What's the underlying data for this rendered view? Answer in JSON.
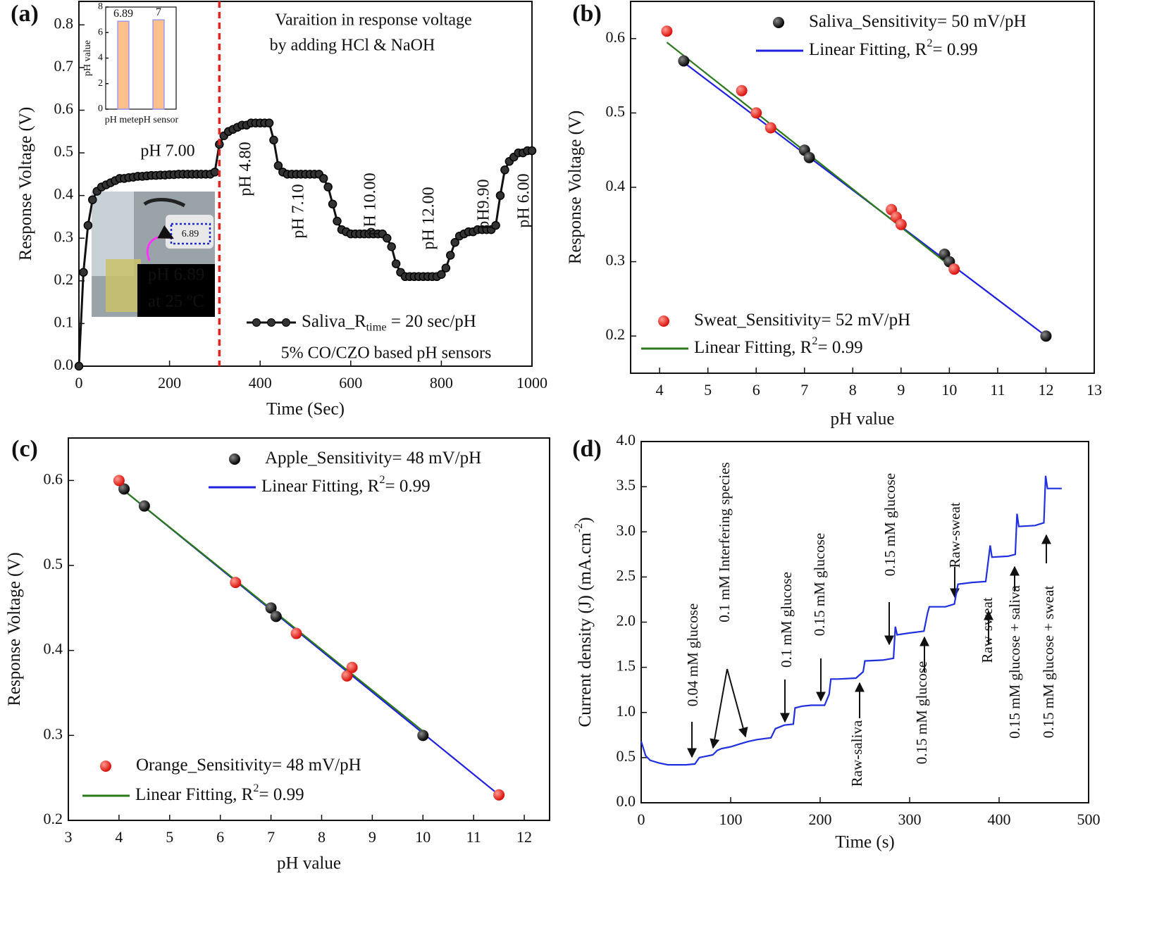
{
  "chart_data": [
    {
      "type": "line",
      "panel_label": "(a)",
      "xlabel": "Time (Sec)",
      "ylabel": "Response Voltage (V)",
      "xlim": [
        0,
        1000
      ],
      "ylim": [
        0,
        0.855
      ],
      "xticks": [
        0,
        200,
        400,
        600,
        800,
        1000
      ],
      "yticks": [
        {
          "value": 0,
          "label": "0.0"
        },
        0.1,
        0.2,
        0.3,
        0.4,
        0.5,
        0.6,
        0.7,
        0.8
      ],
      "vline": 310,
      "vline_color": "#e8231f",
      "annotations": [
        "Varaition in response voltage",
        "by adding HCl & NaOH",
        "5% CO/CZO based pH sensors"
      ],
      "ph_labels": [
        "pH 7.00",
        "pH 4.80",
        "pH 7.10",
        "pH 10.00",
        "pH 12.00",
        "pH9.90",
        "pH 6.00"
      ],
      "photo_labels": [
        "pH 6.89",
        "at 25 ºC"
      ],
      "photo_display": "6.89",
      "series": [
        {
          "name": "Saliva_R",
          "name_subscript": "time",
          "name_suffix": " = 20 sec/pH",
          "color": "#111111",
          "marker": "circle",
          "x": [
            0,
            10,
            20,
            30,
            40,
            50,
            60,
            70,
            80,
            90,
            100,
            110,
            120,
            130,
            140,
            150,
            160,
            170,
            180,
            190,
            200,
            210,
            220,
            230,
            240,
            250,
            260,
            270,
            280,
            290,
            300,
            310,
            320,
            330,
            340,
            350,
            360,
            370,
            380,
            390,
            400,
            410,
            420,
            430,
            440,
            450,
            460,
            470,
            480,
            490,
            500,
            510,
            520,
            530,
            540,
            550,
            560,
            570,
            580,
            590,
            600,
            610,
            620,
            630,
            640,
            650,
            660,
            670,
            680,
            690,
            700,
            710,
            720,
            730,
            740,
            750,
            760,
            770,
            780,
            790,
            800,
            810,
            820,
            830,
            840,
            850,
            860,
            870,
            880,
            890,
            900,
            910,
            920,
            930,
            940,
            950,
            960,
            970,
            980,
            990,
            1000
          ],
          "values": [
            0.0,
            0.22,
            0.33,
            0.39,
            0.41,
            0.42,
            0.425,
            0.43,
            0.435,
            0.44,
            0.44,
            0.442,
            0.443,
            0.445,
            0.445,
            0.446,
            0.447,
            0.447,
            0.448,
            0.448,
            0.449,
            0.449,
            0.45,
            0.45,
            0.45,
            0.45,
            0.45,
            0.45,
            0.45,
            0.45,
            0.455,
            0.52,
            0.54,
            0.55,
            0.555,
            0.56,
            0.565,
            0.565,
            0.57,
            0.57,
            0.57,
            0.57,
            0.57,
            0.53,
            0.47,
            0.455,
            0.45,
            0.45,
            0.45,
            0.45,
            0.45,
            0.45,
            0.45,
            0.45,
            0.44,
            0.42,
            0.38,
            0.34,
            0.32,
            0.315,
            0.31,
            0.31,
            0.31,
            0.31,
            0.31,
            0.31,
            0.31,
            0.31,
            0.3,
            0.28,
            0.24,
            0.22,
            0.21,
            0.21,
            0.21,
            0.21,
            0.21,
            0.21,
            0.21,
            0.21,
            0.215,
            0.23,
            0.26,
            0.29,
            0.305,
            0.31,
            0.315,
            0.315,
            0.32,
            0.32,
            0.32,
            0.32,
            0.33,
            0.4,
            0.46,
            0.48,
            0.49,
            0.5,
            0.5,
            0.505,
            0.505
          ]
        }
      ]
    },
    {
      "type": "scatter",
      "panel_label": "(b)",
      "xlabel": "pH value",
      "ylabel": "Response Voltage (V)",
      "xlim": [
        3.4,
        13
      ],
      "ylim": [
        0.15,
        0.65
      ],
      "xticks": [
        4,
        5,
        6,
        7,
        8,
        9,
        10,
        11,
        12,
        13
      ],
      "yticks": [
        0.2,
        0.3,
        0.4,
        0.5,
        0.6
      ],
      "series": [
        {
          "name": "Saliva_Sensitivity= 50 mV/pH",
          "color": "#111111",
          "x": [
            4.5,
            7,
            7.1,
            9.9,
            10,
            12
          ],
          "values": [
            0.57,
            0.45,
            0.44,
            0.31,
            0.3,
            0.2
          ]
        },
        {
          "type": "line",
          "name": "Linear Fitting, R",
          "name_superscript": "2",
          "name_suffix": "= 0.99",
          "color": "#1f1fe0",
          "x": [
            4.5,
            12
          ],
          "values": [
            0.568,
            0.2
          ]
        },
        {
          "name": "Sweat_Sensitivity= 52 mV/pH",
          "color": "#e8231f",
          "x": [
            4.15,
            5.7,
            6,
            6.3,
            8.8,
            8.9,
            9,
            10.1
          ],
          "values": [
            0.61,
            0.53,
            0.5,
            0.48,
            0.37,
            0.36,
            0.35,
            0.29
          ]
        },
        {
          "type": "line",
          "name": "Linear Fitting, R",
          "name_superscript": "2",
          "name_suffix": "= 0.99",
          "color": "#2a7a1a",
          "x": [
            4.15,
            10.1
          ],
          "values": [
            0.595,
            0.29
          ]
        }
      ]
    },
    {
      "type": "scatter",
      "panel_label": "(c)",
      "xlabel": "pH value",
      "ylabel": "Response Voltage (V)",
      "xlim": [
        3,
        12.5
      ],
      "ylim": [
        0.2,
        0.65
      ],
      "xticks": [
        3,
        4,
        5,
        6,
        7,
        8,
        9,
        10,
        11,
        12
      ],
      "yticks": [
        0.2,
        0.3,
        0.4,
        0.5,
        0.6
      ],
      "series": [
        {
          "name": "Apple_Sensitivity= 48 mV/pH",
          "color": "#111111",
          "x": [
            4.1,
            4.5,
            7,
            7.1,
            10
          ],
          "values": [
            0.59,
            0.57,
            0.45,
            0.44,
            0.3
          ]
        },
        {
          "type": "line",
          "name": "Linear Fitting, R",
          "name_superscript": "2",
          "name_suffix": "= 0.99",
          "color": "#1f1fe0",
          "x": [
            4,
            11.5
          ],
          "values": [
            0.593,
            0.23
          ]
        },
        {
          "name": "Orange_Sensitivity= 48 mV/pH",
          "color": "#e8231f",
          "x": [
            4,
            6.3,
            7.5,
            8.5,
            8.6,
            11.5
          ],
          "values": [
            0.6,
            0.48,
            0.42,
            0.37,
            0.38,
            0.23
          ]
        },
        {
          "type": "line",
          "name": "Linear Fitting, R",
          "name_superscript": "2",
          "name_suffix": "= 0.99",
          "color": "#2a7a1a",
          "x": [
            4,
            10
          ],
          "values": [
            0.593,
            0.305
          ]
        }
      ]
    },
    {
      "type": "line",
      "panel_label": "(d)",
      "xlabel": "Time (s)",
      "ylabel": "Current density (J) (mA.cm",
      "ylabel_superscript": "-2",
      "ylabel_suffix": ")",
      "xlim": [
        0,
        500
      ],
      "ylim": [
        0,
        4
      ],
      "xticks": [
        0,
        100,
        200,
        300,
        400,
        500
      ],
      "yticks": [
        {
          "value": 0,
          "label": "0.0"
        },
        0.5,
        {
          "value": 1,
          "label": "1.0"
        },
        1.5,
        {
          "value": 2,
          "label": "2.0"
        },
        2.5,
        {
          "value": 3,
          "label": "3.0"
        },
        3.5,
        {
          "value": 4,
          "label": "4.0"
        }
      ],
      "annotations": [
        "0.04 mM glucose",
        "0.1 mM Interfering species",
        "0.1 mM glucose",
        "0.15 mM glucose",
        "Raw-saliva",
        "0.15 mM glucose",
        "0.15 mM glucose",
        "Raw-sweat",
        "Raw-sweat",
        "0.15 mM glucose + saliva",
        "0.15 mM glucose + sweat"
      ],
      "annotation_color": "#e0302a",
      "series": [
        {
          "color": "#2030e0",
          "x": [
            0,
            5,
            10,
            20,
            30,
            40,
            50,
            60,
            65,
            70,
            80,
            85,
            90,
            100,
            110,
            120,
            130,
            145,
            150,
            160,
            170,
            172,
            180,
            190,
            205,
            210,
            212,
            220,
            240,
            248,
            250,
            270,
            282,
            284,
            286,
            300,
            316,
            320,
            322,
            340,
            350,
            354,
            370,
            385,
            390,
            392,
            410,
            418,
            420,
            422,
            440,
            450,
            452,
            454,
            470
          ],
          "values": [
            0.68,
            0.52,
            0.47,
            0.44,
            0.42,
            0.42,
            0.42,
            0.43,
            0.5,
            0.51,
            0.53,
            0.58,
            0.6,
            0.62,
            0.65,
            0.68,
            0.7,
            0.72,
            0.82,
            0.86,
            0.87,
            1.05,
            1.07,
            1.08,
            1.08,
            1.2,
            1.37,
            1.37,
            1.38,
            1.45,
            1.57,
            1.58,
            1.6,
            1.95,
            1.86,
            1.88,
            1.9,
            2.1,
            2.17,
            2.17,
            2.2,
            2.42,
            2.44,
            2.45,
            2.85,
            2.72,
            2.73,
            2.75,
            3.2,
            3.06,
            3.07,
            3.1,
            3.62,
            3.48,
            3.48
          ]
        }
      ]
    },
    {
      "type": "bar",
      "ylabel": "pH value",
      "categories": [
        "pH meter",
        "pH sensor"
      ],
      "values": [
        6.89,
        7
      ],
      "ylim": [
        0,
        8
      ],
      "yticks": [
        0,
        2,
        4,
        6,
        8
      ],
      "color": "#fbc08c",
      "edgecolor": "#8a8aff"
    }
  ]
}
